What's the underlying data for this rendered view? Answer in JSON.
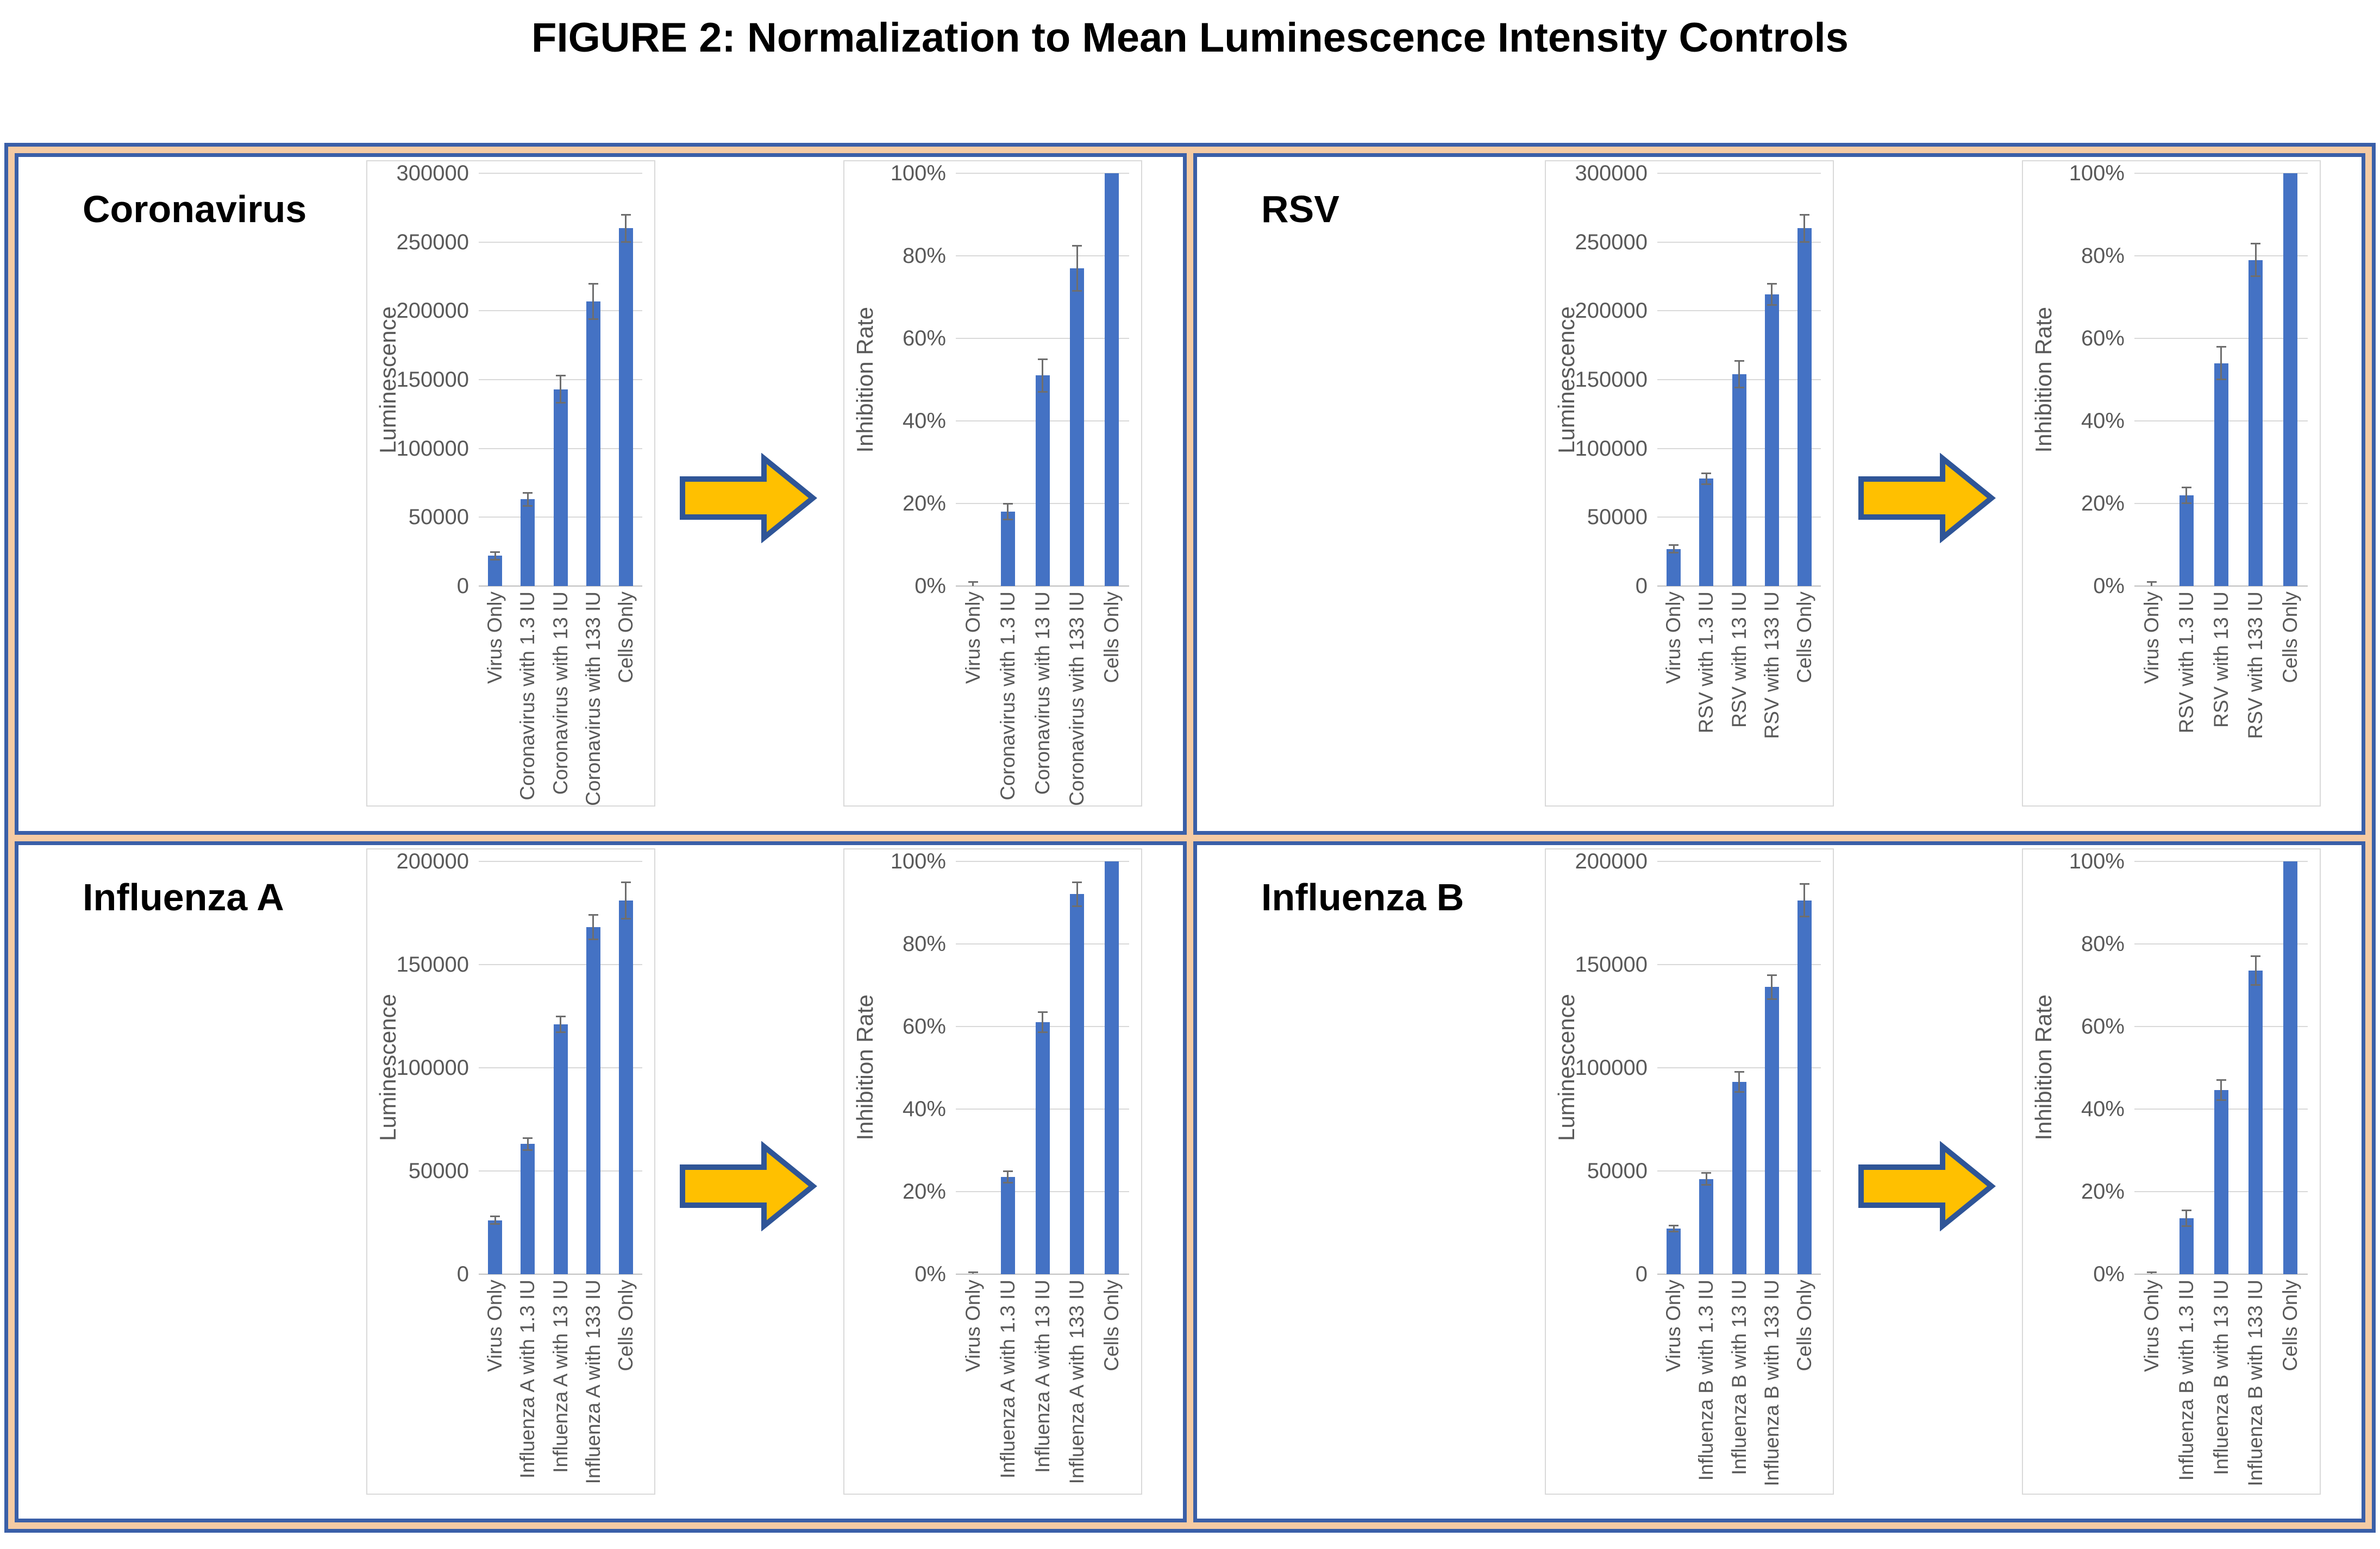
{
  "title": "FIGURE 2: Normalization to Mean Luminescence Intensity Controls",
  "colors": {
    "bar": "#4472C4",
    "error_bar": "#6E6E6E",
    "axis_text": "#595959",
    "gridline": "#D9D9D9",
    "baseline": "#BFBFBF",
    "frame_blue": "#3A5FA8",
    "frame_peach": "#F5CBA3",
    "panel_border": "#D9D9D9",
    "arrow_fill": "#FFC000",
    "arrow_border": "#2F5597",
    "title_text": "#000000"
  },
  "quadrants": [
    {
      "label": "Coronavirus"
    },
    {
      "label": "RSV"
    },
    {
      "label": "Influenza A"
    },
    {
      "label": "Influenza B"
    }
  ],
  "chart_data": [
    {
      "type": "bar",
      "panel": "Coronavirus",
      "position": "left",
      "ylabel": "Luminescence",
      "ylim": [
        0,
        300000
      ],
      "ytick_values": [
        0,
        50000,
        100000,
        150000,
        200000,
        250000,
        300000
      ],
      "ytick_labels": [
        "0",
        "50000",
        "100000",
        "150000",
        "200000",
        "250000",
        "300000"
      ],
      "categories": [
        "Virus Only",
        "Coronavirus with 1.3 IU",
        "Coronavirus with 13 IU",
        "Coronavirus with 133 IU",
        "Cells Only"
      ],
      "values": [
        22000,
        63000,
        143000,
        207000,
        260000
      ],
      "errors": [
        3000,
        5000,
        10000,
        13000,
        10000
      ],
      "grid": true,
      "legend": "none"
    },
    {
      "type": "bar",
      "panel": "Coronavirus",
      "position": "right",
      "ylabel": "Inhibition Rate",
      "ylim": [
        0,
        100
      ],
      "ytick_values": [
        0,
        20,
        40,
        60,
        80,
        100
      ],
      "ytick_labels": [
        "0%",
        "20%",
        "40%",
        "60%",
        "80%",
        "100%"
      ],
      "categories": [
        "Virus Only",
        "Coronavirus with 1.3 IU",
        "Coronavirus with 13 IU",
        "Coronavirus with 133 IU",
        "Cells Only"
      ],
      "values": [
        0,
        18,
        51,
        77,
        100
      ],
      "errors": [
        1,
        2,
        4,
        5.5,
        0
      ],
      "grid": true,
      "legend": "none"
    },
    {
      "type": "bar",
      "panel": "RSV",
      "position": "left",
      "ylabel": "Luminescence",
      "ylim": [
        0,
        300000
      ],
      "ytick_values": [
        0,
        50000,
        100000,
        150000,
        200000,
        250000,
        300000
      ],
      "ytick_labels": [
        "0",
        "50000",
        "100000",
        "150000",
        "200000",
        "250000",
        "300000"
      ],
      "categories": [
        "Virus Only",
        "RSV with 1.3 IU",
        "RSV with 13 IU",
        "RSV with 133 IU",
        "Cells Only"
      ],
      "values": [
        27000,
        78000,
        154000,
        212000,
        260000
      ],
      "errors": [
        3000,
        4000,
        10000,
        8000,
        10000
      ],
      "grid": true,
      "legend": "none"
    },
    {
      "type": "bar",
      "panel": "RSV",
      "position": "right",
      "ylabel": "Inhibition Rate",
      "ylim": [
        0,
        100
      ],
      "ytick_values": [
        0,
        20,
        40,
        60,
        80,
        100
      ],
      "ytick_labels": [
        "0%",
        "20%",
        "40%",
        "60%",
        "80%",
        "100%"
      ],
      "categories": [
        "Virus Only",
        "RSV with 1.3 IU",
        "RSV with 13 IU",
        "RSV with 133 IU",
        "Cells Only"
      ],
      "values": [
        0,
        22,
        54,
        79,
        100
      ],
      "errors": [
        1,
        2,
        4,
        4,
        0
      ],
      "grid": true,
      "legend": "none"
    },
    {
      "type": "bar",
      "panel": "Influenza A",
      "position": "left",
      "ylabel": "Luminescence",
      "ylim": [
        0,
        200000
      ],
      "ytick_values": [
        0,
        50000,
        100000,
        150000,
        200000
      ],
      "ytick_labels": [
        "0",
        "50000",
        "100000",
        "150000",
        "200000"
      ],
      "categories": [
        "Virus Only",
        "Influenza A with 1.3 IU",
        "Influenza A with 13 IU",
        "Influenza A with 133 IU",
        "Cells Only"
      ],
      "values": [
        26000,
        63000,
        121000,
        168000,
        181000
      ],
      "errors": [
        2000,
        3000,
        4000,
        6000,
        9000
      ],
      "grid": true,
      "legend": "none"
    },
    {
      "type": "bar",
      "panel": "Influenza A",
      "position": "right",
      "ylabel": "Inhibition Rate",
      "ylim": [
        0,
        100
      ],
      "ytick_values": [
        0,
        20,
        40,
        60,
        80,
        100
      ],
      "ytick_labels": [
        "0%",
        "20%",
        "40%",
        "60%",
        "80%",
        "100%"
      ],
      "categories": [
        "Virus Only",
        "Influenza A with 1.3 IU",
        "Influenza A with 13 IU",
        "Influenza A with 133 IU",
        "Cells Only"
      ],
      "values": [
        0,
        23.5,
        61,
        92,
        100
      ],
      "errors": [
        0.5,
        1.5,
        2.5,
        3,
        0
      ],
      "grid": true,
      "legend": "none"
    },
    {
      "type": "bar",
      "panel": "Influenza B",
      "position": "left",
      "ylabel": "Luminescence",
      "ylim": [
        0,
        200000
      ],
      "ytick_values": [
        0,
        50000,
        100000,
        150000,
        200000
      ],
      "ytick_labels": [
        "0",
        "50000",
        "100000",
        "150000",
        "200000"
      ],
      "categories": [
        "Virus Only",
        "Influenza B with 1.3 IU",
        "Influenza B with 13 IU",
        "Influenza B with 133 IU",
        "Cells Only"
      ],
      "values": [
        22000,
        46000,
        93000,
        139000,
        181000
      ],
      "errors": [
        1500,
        3000,
        5000,
        6000,
        8000
      ],
      "grid": true,
      "legend": "none"
    },
    {
      "type": "bar",
      "panel": "Influenza B",
      "position": "right",
      "ylabel": "Inhibition Rate",
      "ylim": [
        0,
        100
      ],
      "ytick_values": [
        0,
        20,
        40,
        60,
        80,
        100
      ],
      "ytick_labels": [
        "0%",
        "20%",
        "40%",
        "60%",
        "80%",
        "100%"
      ],
      "categories": [
        "Virus Only",
        "Influenza B with 1.3 IU",
        "Influenza B with 13 IU",
        "Influenza B with 133 IU",
        "Cells Only"
      ],
      "values": [
        0,
        13.5,
        44.5,
        73.5,
        100
      ],
      "errors": [
        0.5,
        2,
        2.5,
        3.5,
        0
      ],
      "grid": true,
      "legend": "none"
    }
  ]
}
